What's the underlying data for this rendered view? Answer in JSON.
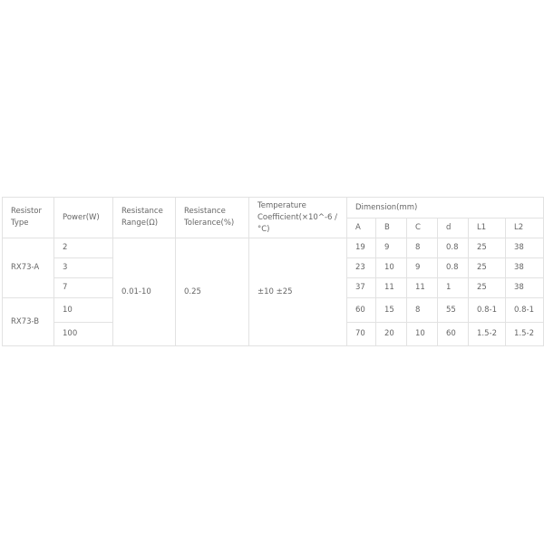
{
  "headers": {
    "type": "Resistor Type",
    "power": "Power(W)",
    "range": "Resistance Range(Ω)",
    "tolerance": "Resistance Tolerance(%)",
    "tempco": "Temperature Coefficient(×10^-6 /°C)",
    "dimension": "Dimension(mm)",
    "dims": [
      "A",
      "B",
      "C",
      "d",
      "L1",
      "L2"
    ]
  },
  "groups": [
    {
      "type": "RX73-A"
    },
    {
      "type": "RX73-B"
    }
  ],
  "shared": {
    "range": "0.01-10",
    "tolerance": "0.25",
    "tempco": "±10 ±25"
  },
  "rows": [
    {
      "power": "2",
      "dims": [
        "19",
        "9",
        "8",
        "0.8",
        "25",
        "38"
      ]
    },
    {
      "power": "3",
      "dims": [
        "23",
        "10",
        "9",
        "0.8",
        "25",
        "38"
      ]
    },
    {
      "power": "7",
      "dims": [
        "37",
        "11",
        "11",
        "1",
        "25",
        "38"
      ]
    },
    {
      "power": "10",
      "dims": [
        "60",
        "15",
        "8",
        "55",
        "0.8-1",
        "0.8-1"
      ]
    },
    {
      "power": "100",
      "dims": [
        "70",
        "20",
        "10",
        "60",
        "1.5-2",
        "1.5-2"
      ]
    }
  ]
}
